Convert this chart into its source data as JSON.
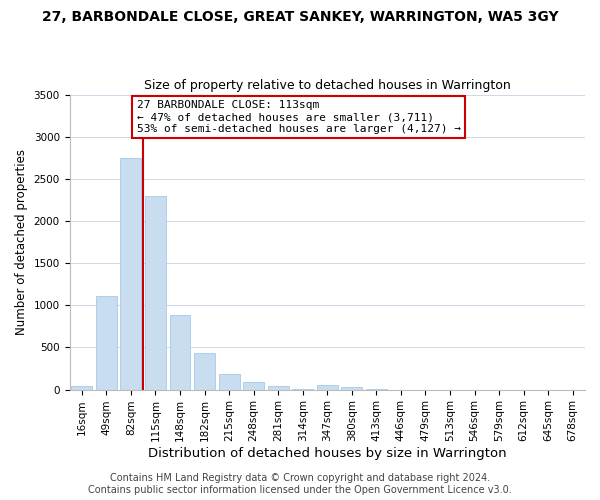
{
  "title": "27, BARBONDALE CLOSE, GREAT SANKEY, WARRINGTON, WA5 3GY",
  "subtitle": "Size of property relative to detached houses in Warrington",
  "xlabel": "Distribution of detached houses by size in Warrington",
  "ylabel": "Number of detached properties",
  "bar_labels": [
    "16sqm",
    "49sqm",
    "82sqm",
    "115sqm",
    "148sqm",
    "182sqm",
    "215sqm",
    "248sqm",
    "281sqm",
    "314sqm",
    "347sqm",
    "380sqm",
    "413sqm",
    "446sqm",
    "479sqm",
    "513sqm",
    "546sqm",
    "579sqm",
    "612sqm",
    "645sqm",
    "678sqm"
  ],
  "bar_values": [
    40,
    1110,
    2750,
    2300,
    880,
    440,
    190,
    95,
    40,
    10,
    55,
    30,
    5,
    0,
    0,
    0,
    0,
    0,
    0,
    0,
    0
  ],
  "bar_color": "#c9ddf0",
  "bar_edge_color": "#a8c8e8",
  "vline_x_index": 2,
  "vline_color": "#cc0000",
  "ylim": [
    0,
    3500
  ],
  "yticks": [
    0,
    500,
    1000,
    1500,
    2000,
    2500,
    3000,
    3500
  ],
  "annotation_title": "27 BARBONDALE CLOSE: 113sqm",
  "annotation_line1": "← 47% of detached houses are smaller (3,711)",
  "annotation_line2": "53% of semi-detached houses are larger (4,127) →",
  "annotation_box_color": "#ffffff",
  "annotation_box_edge": "#cc0000",
  "footer1": "Contains HM Land Registry data © Crown copyright and database right 2024.",
  "footer2": "Contains public sector information licensed under the Open Government Licence v3.0.",
  "title_fontsize": 10,
  "subtitle_fontsize": 9,
  "xlabel_fontsize": 9.5,
  "ylabel_fontsize": 8.5,
  "annotation_fontsize": 8,
  "tick_fontsize": 7.5,
  "footer_fontsize": 7,
  "background_color": "#ffffff",
  "grid_color": "#d0d8e8"
}
